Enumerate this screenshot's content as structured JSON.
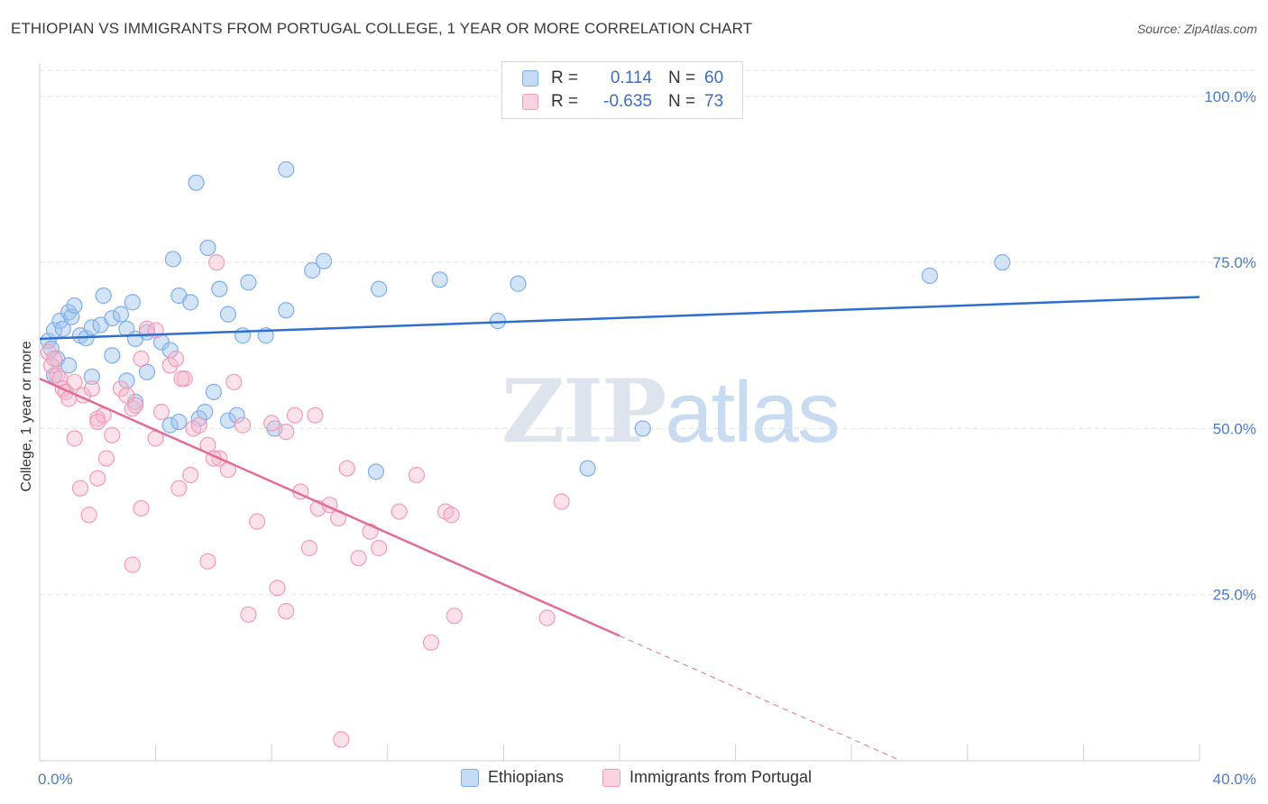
{
  "header": {
    "title": "ETHIOPIAN VS IMMIGRANTS FROM PORTUGAL COLLEGE, 1 YEAR OR MORE CORRELATION CHART",
    "source": "Source: ZipAtlas.com"
  },
  "watermark": {
    "zip": "ZIP",
    "atlas": "atlas"
  },
  "legend": {
    "rows": [
      {
        "r_label": "R =",
        "r_value": "0.114",
        "n_label": "N =",
        "n_value": "60",
        "color": "#7eaee8"
      },
      {
        "r_label": "R =",
        "r_value": "-0.635",
        "n_label": "N =",
        "n_value": "73",
        "color": "#f29bb7"
      }
    ]
  },
  "bottom_legend": {
    "ethiopians": "Ethiopians",
    "portugal": "Immigrants from Portugal"
  },
  "chart_data": {
    "type": "scatter",
    "title": "ETHIOPIAN VS IMMIGRANTS FROM PORTUGAL COLLEGE, 1 YEAR OR MORE CORRELATION CHART",
    "xlabel": "",
    "ylabel": "College, 1 year or more",
    "xlim": [
      0,
      40
    ],
    "ylim": [
      0,
      105
    ],
    "x_tick_labels": [
      "0.0%",
      "40.0%"
    ],
    "y_ticks": [
      25,
      50,
      75,
      100
    ],
    "y_tick_labels": [
      "25.0%",
      "50.0%",
      "75.0%",
      "100.0%"
    ],
    "grid": true,
    "legend_position": "top-center",
    "series": [
      {
        "name": "Ethiopians",
        "color": "#7eaee8",
        "line_color": "#2f6fcb",
        "trend": {
          "x": [
            0,
            40
          ],
          "y": [
            63.5,
            69.8
          ]
        },
        "points": [
          [
            0.3,
            63.2
          ],
          [
            0.5,
            64.8
          ],
          [
            0.7,
            66.2
          ],
          [
            0.8,
            65.0
          ],
          [
            1.0,
            67.5
          ],
          [
            1.1,
            66.8
          ],
          [
            1.2,
            68.5
          ],
          [
            0.4,
            62.0
          ],
          [
            0.6,
            60.5
          ],
          [
            1.4,
            64.0
          ],
          [
            1.6,
            63.6
          ],
          [
            1.8,
            65.2
          ],
          [
            2.1,
            65.6
          ],
          [
            2.2,
            70.0
          ],
          [
            2.5,
            66.6
          ],
          [
            2.8,
            67.2
          ],
          [
            3.0,
            65.0
          ],
          [
            3.2,
            69.0
          ],
          [
            3.3,
            63.5
          ],
          [
            3.7,
            64.5
          ],
          [
            4.2,
            63.0
          ],
          [
            4.5,
            61.8
          ],
          [
            4.8,
            70.0
          ],
          [
            5.2,
            69.0
          ],
          [
            5.8,
            77.2
          ],
          [
            6.2,
            71.0
          ],
          [
            6.5,
            67.2
          ],
          [
            7.0,
            64.0
          ],
          [
            7.8,
            64.0
          ],
          [
            8.5,
            67.8
          ],
          [
            9.4,
            73.8
          ],
          [
            9.8,
            75.2
          ],
          [
            11.7,
            71.0
          ],
          [
            13.8,
            72.4
          ],
          [
            1.8,
            57.8
          ],
          [
            3.0,
            57.2
          ],
          [
            3.3,
            54.0
          ],
          [
            3.7,
            58.5
          ],
          [
            4.5,
            50.5
          ],
          [
            4.8,
            51.0
          ],
          [
            5.5,
            51.5
          ],
          [
            5.7,
            52.5
          ],
          [
            6.5,
            51.2
          ],
          [
            6.8,
            52.0
          ],
          [
            8.1,
            50.0
          ],
          [
            11.6,
            43.5
          ],
          [
            15.8,
            66.2
          ],
          [
            16.5,
            71.8
          ],
          [
            18.9,
            44.0
          ],
          [
            20.8,
            50.0
          ],
          [
            30.7,
            73.0
          ],
          [
            33.2,
            75.0
          ],
          [
            5.4,
            87.0
          ],
          [
            8.5,
            89.0
          ],
          [
            4.6,
            75.5
          ],
          [
            7.2,
            72.0
          ],
          [
            6.0,
            55.5
          ],
          [
            2.5,
            61.0
          ],
          [
            1.0,
            59.5
          ],
          [
            0.5,
            58.0
          ]
        ]
      },
      {
        "name": "Immigrants from Portugal",
        "color": "#f29bb7",
        "line_color": "#e06d95",
        "trend": {
          "x": [
            0,
            20
          ],
          "y": [
            57.5,
            18.8
          ]
        },
        "trend_dashed": {
          "x": [
            20,
            29.6
          ],
          "y": [
            18.8,
            0.2
          ]
        },
        "points": [
          [
            0.3,
            61.5
          ],
          [
            0.4,
            59.5
          ],
          [
            0.5,
            60.5
          ],
          [
            0.6,
            58.0
          ],
          [
            0.7,
            57.5
          ],
          [
            0.8,
            56.0
          ],
          [
            0.9,
            55.5
          ],
          [
            1.0,
            54.5
          ],
          [
            1.2,
            57.0
          ],
          [
            1.5,
            55.0
          ],
          [
            1.8,
            56.0
          ],
          [
            2.0,
            51.5
          ],
          [
            2.2,
            52.0
          ],
          [
            2.5,
            49.0
          ],
          [
            2.8,
            56.0
          ],
          [
            3.0,
            55.0
          ],
          [
            3.2,
            53.0
          ],
          [
            3.5,
            60.5
          ],
          [
            3.7,
            65.0
          ],
          [
            4.0,
            64.8
          ],
          [
            4.2,
            52.5
          ],
          [
            4.5,
            59.5
          ],
          [
            4.7,
            60.5
          ],
          [
            5.0,
            57.5
          ],
          [
            5.3,
            50.0
          ],
          [
            5.5,
            50.5
          ],
          [
            5.8,
            47.5
          ],
          [
            6.2,
            45.5
          ],
          [
            6.7,
            57.0
          ],
          [
            7.0,
            50.5
          ],
          [
            7.5,
            36.0
          ],
          [
            8.5,
            49.5
          ],
          [
            8.8,
            52.0
          ],
          [
            9.0,
            40.5
          ],
          [
            9.3,
            32.0
          ],
          [
            9.6,
            38.0
          ],
          [
            10.0,
            38.5
          ],
          [
            10.3,
            36.5
          ],
          [
            10.6,
            44.0
          ],
          [
            11.0,
            30.5
          ],
          [
            11.4,
            34.5
          ],
          [
            11.7,
            32.0
          ],
          [
            12.4,
            37.5
          ],
          [
            13.0,
            43.0
          ],
          [
            14.0,
            37.5
          ],
          [
            14.3,
            21.8
          ],
          [
            1.2,
            48.5
          ],
          [
            1.4,
            41.0
          ],
          [
            1.7,
            37.0
          ],
          [
            2.0,
            42.5
          ],
          [
            2.3,
            45.5
          ],
          [
            3.2,
            29.5
          ],
          [
            3.5,
            38.0
          ],
          [
            4.0,
            48.5
          ],
          [
            4.8,
            41.0
          ],
          [
            5.2,
            43.0
          ],
          [
            5.8,
            30.0
          ],
          [
            6.0,
            45.5
          ],
          [
            6.5,
            43.8
          ],
          [
            7.2,
            22.0
          ],
          [
            8.2,
            26.0
          ],
          [
            8.5,
            22.5
          ],
          [
            10.4,
            3.2
          ],
          [
            13.5,
            17.8
          ],
          [
            14.2,
            37.0
          ],
          [
            17.5,
            21.5
          ],
          [
            18.0,
            39.0
          ],
          [
            6.1,
            75.0
          ],
          [
            3.3,
            53.5
          ],
          [
            2.0,
            51.0
          ],
          [
            4.9,
            57.5
          ],
          [
            8.0,
            50.8
          ],
          [
            9.5,
            52.0
          ]
        ]
      }
    ]
  }
}
